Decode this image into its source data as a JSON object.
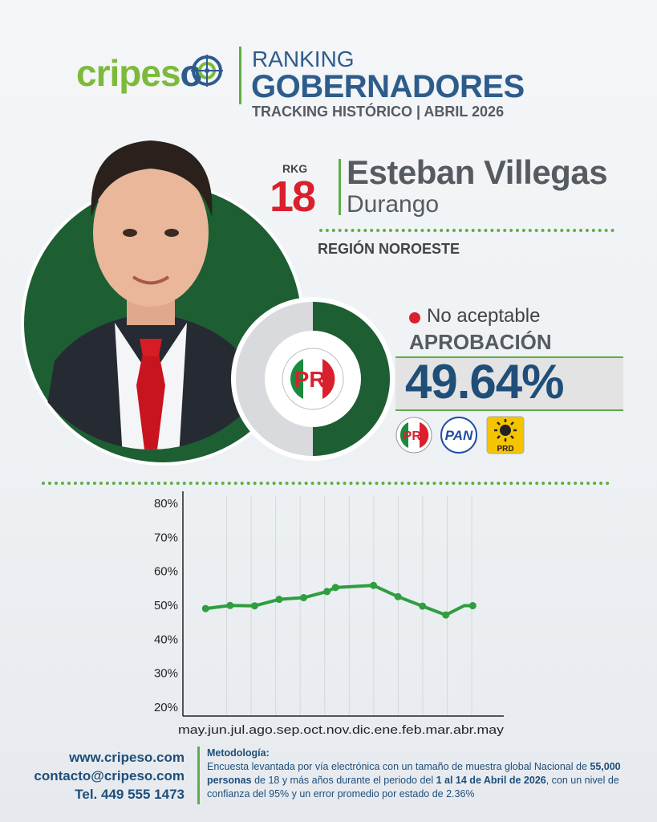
{
  "brand": {
    "logo_part1": "cripes",
    "logo_part2": "o"
  },
  "header": {
    "line1": "RANKING",
    "line2": "GOBERNADORES",
    "line3": "TRACKING HISTÓRICO | ABRIL 2026"
  },
  "profile": {
    "rank_label": "RKG",
    "rank": "18",
    "name": "Esteban Villegas",
    "state": "Durango",
    "region": "REGIÓN NOROESTE",
    "party": "PRI"
  },
  "approval": {
    "status": "No aceptable",
    "status_color": "#d9202c",
    "label": "APROBACIÓN",
    "value_text": "49.64%",
    "value": 49.64
  },
  "coalition": [
    "PRI",
    "PAN",
    "PRD"
  ],
  "colors": {
    "green": "#1d5e32",
    "accent_green": "#5fae45",
    "blue": "#1f4e79",
    "red": "#d9202c",
    "line": "#2e9e3e"
  },
  "chart_data": {
    "type": "line",
    "title": "",
    "xlabel": "",
    "ylabel": "",
    "categories": [
      "may.",
      "jun.",
      "jul.",
      "ago.",
      "sep.",
      "oct.",
      "nov.",
      "dic.",
      "ene.",
      "feb.",
      "mar.",
      "abr.",
      "may"
    ],
    "y_ticks": [
      "80%",
      "70%",
      "60%",
      "50%",
      "40%",
      "30%",
      "20%"
    ],
    "ylim": [
      20,
      80
    ],
    "grid": "vertical",
    "series": [
      {
        "x": [
          "jun.",
          "jul.",
          "ago.",
          "sep.",
          "oct.",
          "nov.",
          "nov.",
          "ene.",
          "feb.",
          "mar.",
          "abr.",
          "may",
          "may"
        ],
        "x_pos": [
          0.6,
          1.6,
          2.6,
          3.6,
          4.6,
          5.55,
          5.9,
          7.45,
          8.45,
          9.45,
          10.4,
          11.15,
          11.5
        ],
        "values": [
          48.8,
          49.7,
          49.6,
          51.5,
          52.0,
          53.8,
          55.0,
          55.6,
          52.3,
          49.5,
          46.9,
          49.64,
          49.64
        ]
      }
    ]
  },
  "footer": {
    "website": "www.cripeso.com",
    "email": "contacto@cripeso.com",
    "phone": "Tel. 449 555 1473",
    "method_title": "Metodología:",
    "method_a": "Encuesta levantada por vía electrónica con un tamaño de muestra global Nacional de ",
    "method_b": "55,000 personas",
    "method_c": " de 18 y más años durante el periodo del ",
    "method_d": "1 al 14 de Abril de 2026",
    "method_e": ", con un nivel de confianza del 95% y un error promedio por estado de 2.36%"
  }
}
